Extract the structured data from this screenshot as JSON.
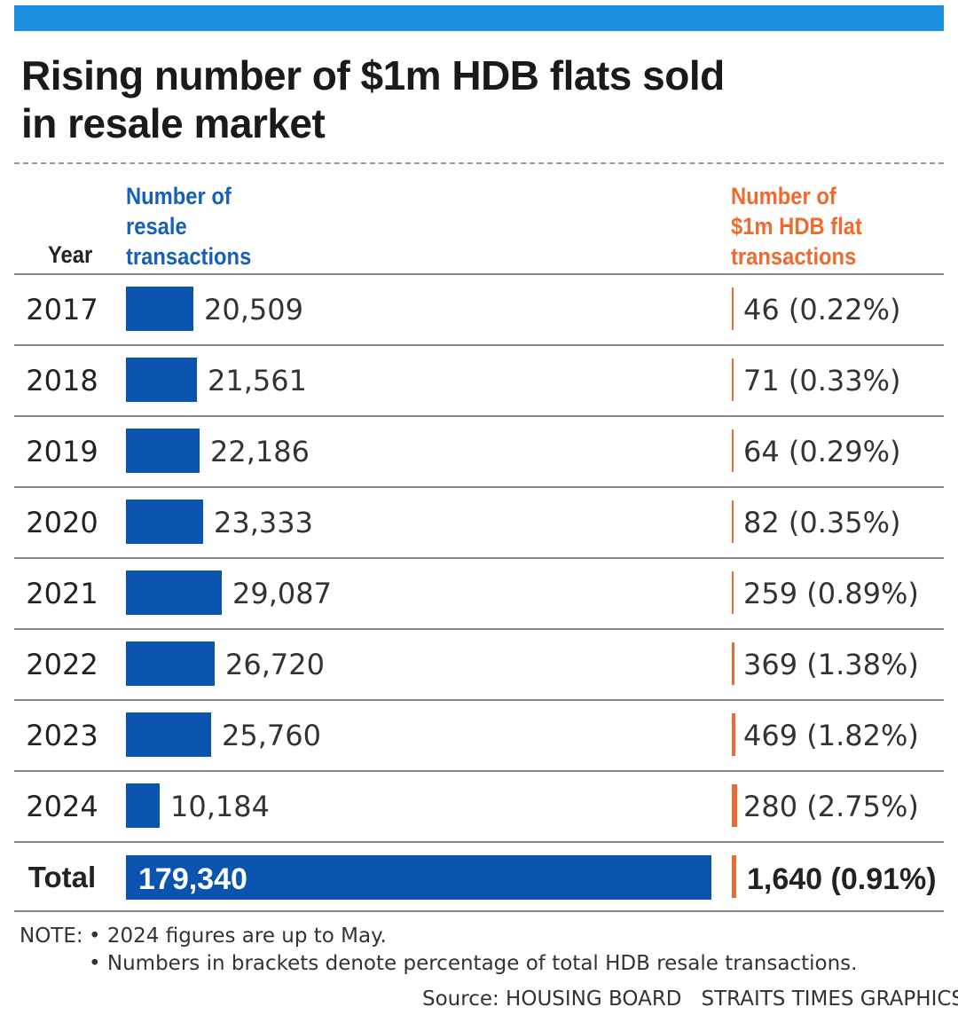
{
  "title_line1": "Rising number of $1m HDB flats sold",
  "title_line2": "in resale market",
  "headers": {
    "year": "Year",
    "resale_lines": [
      "Number of",
      "resale",
      "transactions"
    ],
    "million_lines": [
      "Number of",
      "$1m HDB flat",
      "transactions"
    ]
  },
  "colors": {
    "accent_bar": "#1d8fe0",
    "resale": "#0a54b0",
    "million": "#ee6a2e"
  },
  "chart_data": {
    "type": "bar",
    "categories": [
      "2017",
      "2018",
      "2019",
      "2020",
      "2021",
      "2022",
      "2023",
      "2024"
    ],
    "series": [
      {
        "name": "Number of resale transactions",
        "values": [
          20509,
          21561,
          22186,
          23333,
          29087,
          26720,
          25760,
          10184
        ],
        "labels": [
          "20,509",
          "21,561",
          "22,186",
          "23,333",
          "29,087",
          "26,720",
          "25,760",
          "10,184"
        ]
      },
      {
        "name": "Number of $1m HDB flat transactions",
        "values": [
          46,
          71,
          64,
          82,
          259,
          369,
          469,
          280
        ],
        "percent": [
          0.22,
          0.33,
          0.29,
          0.35,
          0.89,
          1.38,
          1.82,
          2.75
        ],
        "labels": [
          "46 (0.22%)",
          "71 (0.33%)",
          "64 (0.29%)",
          "82 (0.35%)",
          "259 (0.89%)",
          "369 (1.38%)",
          "469 (1.82%)",
          "280 (2.75%)"
        ]
      }
    ],
    "total": {
      "label": "Total",
      "resale_value": 179340,
      "resale_label": "179,340",
      "million_value": 1640,
      "million_percent": 0.91,
      "million_label": "1,640 (0.91%)"
    }
  },
  "notes": {
    "label": "NOTE:",
    "items": [
      "• 2024 figures are up to May.",
      "• Numbers in brackets denote percentage of total HDB resale transactions."
    ]
  },
  "source": {
    "text": "Source: HOUSING BOARD",
    "credit": "STRAITS TIMES GRAPHICS"
  }
}
